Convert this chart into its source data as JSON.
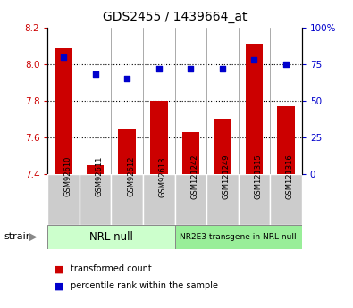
{
  "title": "GDS2455 / 1439664_at",
  "categories": [
    "GSM92610",
    "GSM92611",
    "GSM92612",
    "GSM92613",
    "GSM121242",
    "GSM121249",
    "GSM121315",
    "GSM121316"
  ],
  "bar_values": [
    8.09,
    7.45,
    7.65,
    7.8,
    7.63,
    7.7,
    8.11,
    7.77
  ],
  "dot_values": [
    80,
    68,
    65,
    72,
    72,
    72,
    78,
    75
  ],
  "bar_color": "#cc0000",
  "dot_color": "#0000cc",
  "ylim_left": [
    7.4,
    8.2
  ],
  "ylim_right": [
    0,
    100
  ],
  "yticks_left": [
    7.4,
    7.6,
    7.8,
    8.0,
    8.2
  ],
  "yticks_right": [
    0,
    25,
    50,
    75,
    100
  ],
  "ytick_labels_right": [
    "0",
    "25",
    "50",
    "75",
    "100%"
  ],
  "group1_label": "NRL null",
  "group2_label": "NR2E3 transgene in NRL null",
  "group1_color": "#ccffcc",
  "group2_color": "#99ee99",
  "strain_label": "strain",
  "legend_bar_label": "transformed count",
  "legend_dot_label": "percentile rank within the sample",
  "bar_width": 0.55,
  "base_value": 7.4,
  "tick_bg_color": "#cccccc",
  "grid_lines": [
    7.6,
    7.8,
    8.0
  ]
}
